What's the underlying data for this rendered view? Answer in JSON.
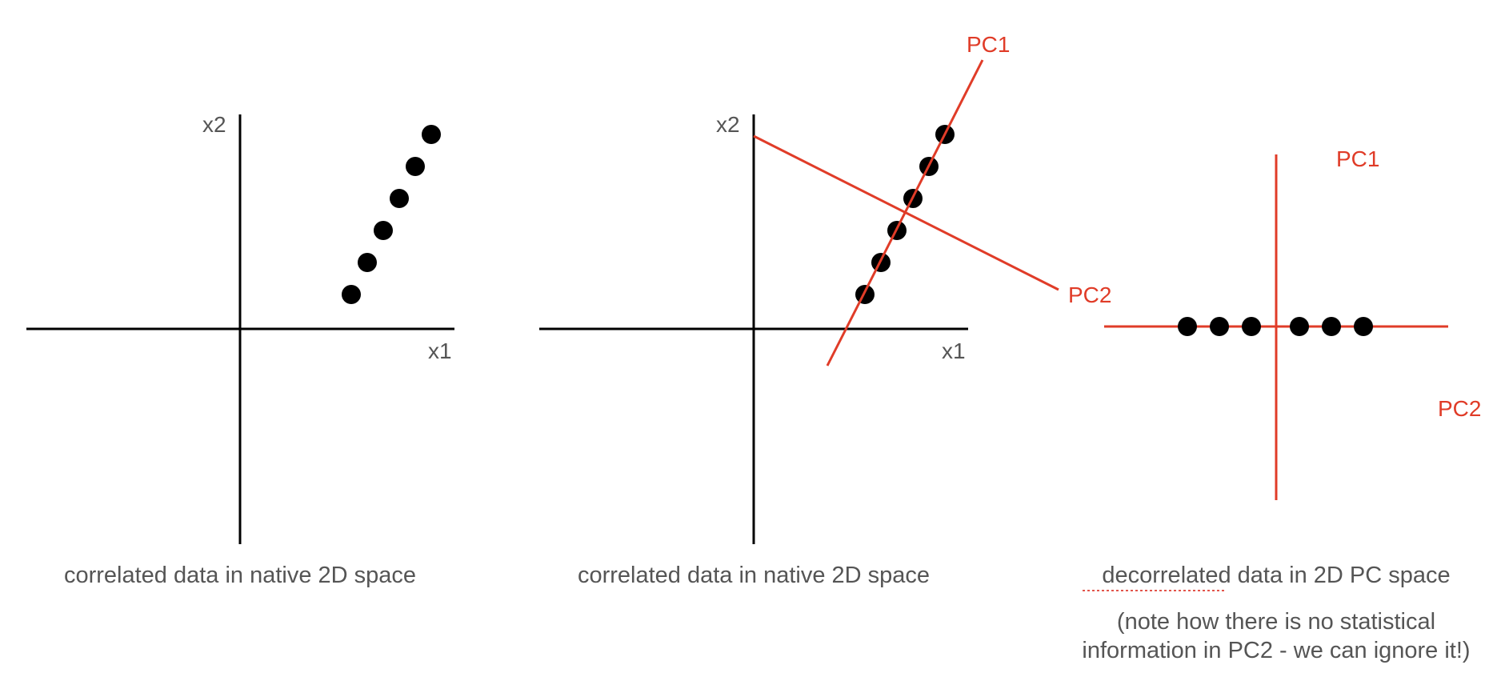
{
  "colors": {
    "axis": "#000000",
    "pc": "#e03c28",
    "point": "#000000",
    "text": "#555555"
  },
  "panels": [
    {
      "x_axis_label": "x1",
      "y_axis_label": "x2",
      "caption": "correlated data in native 2D space"
    },
    {
      "x_axis_label": "x1",
      "y_axis_label": "x2",
      "pc1_label": "PC1",
      "pc2_label": "PC2",
      "caption": "correlated data in native 2D space"
    },
    {
      "pc1_label": "PC1",
      "pc2_label": "PC2",
      "caption_word": "decorrelated",
      "caption_rest": " data in 2D PC space",
      "note_line1": "(note how there is no statistical",
      "note_line2": "information in PC2 - we can ignore it!)"
    }
  ]
}
